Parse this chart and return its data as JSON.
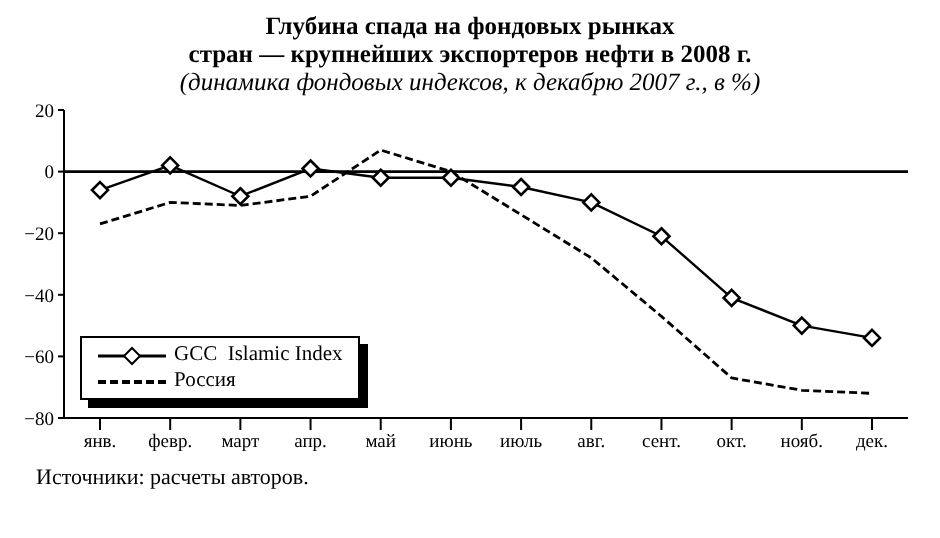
{
  "chart_data": {
    "type": "line",
    "title": "Глубина спада на фондовых рынках\nстран — крупнейших экспортеров нефти в 2008 г.",
    "subtitle": "(динамика фондовых индексов, к декабрю 2007 г., в %)",
    "categories": [
      "янв.",
      "февр.",
      "март",
      "апр.",
      "май",
      "июнь",
      "июль",
      "авг.",
      "сент.",
      "окт.",
      "нояб.",
      "дек."
    ],
    "series": [
      {
        "name": "GCC  Islamic Index",
        "color": "#000000",
        "marker": "diamond",
        "line_style": "solid",
        "values": [
          -6,
          2,
          -8,
          1,
          -2,
          -2,
          -5,
          -10,
          -21,
          -41,
          -50,
          -54
        ]
      },
      {
        "name": "Россия",
        "color": "#000000",
        "marker": "none",
        "line_style": "dashed",
        "values": [
          -17,
          -10,
          -11,
          -8,
          7,
          0,
          -14,
          -28,
          -47,
          -67,
          -71,
          -72
        ]
      }
    ],
    "ylim": [
      -80,
      20
    ],
    "yticks": [
      20,
      0,
      -20,
      -40,
      -60,
      -80
    ],
    "grid": false,
    "legend": "bottom left",
    "ref_lines": [
      {
        "axis": "y",
        "value": 0,
        "color": "#000000"
      }
    ],
    "annotations": [
      "Источники: расчеты авторов."
    ]
  }
}
